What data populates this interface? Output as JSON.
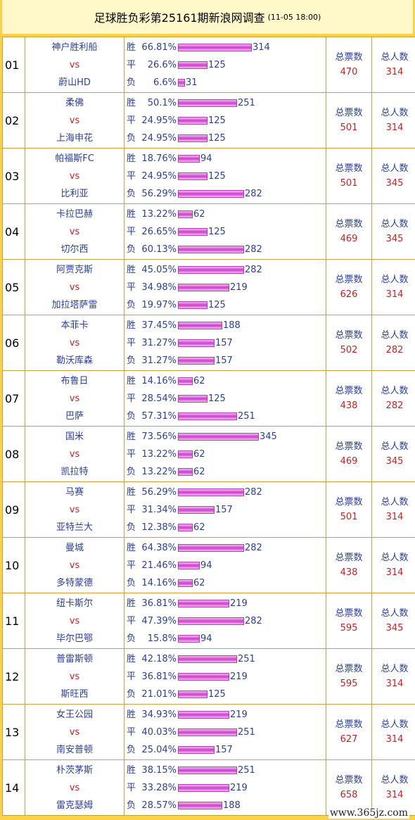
{
  "header": {
    "title": "足球胜负彩第25161期新浪网调查",
    "datetime": "(11-05 18:00)"
  },
  "labels": {
    "win": "胜",
    "draw": "平",
    "loss": "负",
    "vs": "vs",
    "total_votes": "总票数",
    "total_people": "总人数"
  },
  "bar_scale_max": 345,
  "matches": [
    {
      "num": "01",
      "home": "神户胜利船",
      "away": "蔚山HD",
      "win_pct": "66.81%",
      "win": 314,
      "draw_pct": "26.6%",
      "draw": 125,
      "loss_pct": "6.6%",
      "loss": 31,
      "total_votes": "470",
      "total_people": "314"
    },
    {
      "num": "02",
      "home": "柔佛",
      "away": "上海申花",
      "win_pct": "50.1%",
      "win": 251,
      "draw_pct": "24.95%",
      "draw": 125,
      "loss_pct": "24.95%",
      "loss": 125,
      "total_votes": "501",
      "total_people": "314"
    },
    {
      "num": "03",
      "home": "帕福斯FC",
      "away": "比利亚",
      "win_pct": "18.76%",
      "win": 94,
      "draw_pct": "24.95%",
      "draw": 125,
      "loss_pct": "56.29%",
      "loss": 282,
      "total_votes": "501",
      "total_people": "345"
    },
    {
      "num": "04",
      "home": "卡拉巴赫",
      "away": "切尔西",
      "win_pct": "13.22%",
      "win": 62,
      "draw_pct": "26.65%",
      "draw": 125,
      "loss_pct": "60.13%",
      "loss": 282,
      "total_votes": "469",
      "total_people": "345"
    },
    {
      "num": "05",
      "home": "阿贾克斯",
      "away": "加拉塔萨雷",
      "win_pct": "45.05%",
      "win": 282,
      "draw_pct": "34.98%",
      "draw": 219,
      "loss_pct": "19.97%",
      "loss": 125,
      "total_votes": "626",
      "total_people": "314"
    },
    {
      "num": "06",
      "home": "本菲卡",
      "away": "勒沃库森",
      "win_pct": "37.45%",
      "win": 188,
      "draw_pct": "31.27%",
      "draw": 157,
      "loss_pct": "31.27%",
      "loss": 157,
      "total_votes": "502",
      "total_people": "282"
    },
    {
      "num": "07",
      "home": "布鲁日",
      "away": "巴萨",
      "win_pct": "14.16%",
      "win": 62,
      "draw_pct": "28.54%",
      "draw": 125,
      "loss_pct": "57.31%",
      "loss": 251,
      "total_votes": "438",
      "total_people": "282"
    },
    {
      "num": "08",
      "home": "国米",
      "away": "凯拉特",
      "win_pct": "73.56%",
      "win": 345,
      "draw_pct": "13.22%",
      "draw": 62,
      "loss_pct": "13.22%",
      "loss": 62,
      "total_votes": "469",
      "total_people": "345"
    },
    {
      "num": "09",
      "home": "马赛",
      "away": "亚特兰大",
      "win_pct": "56.29%",
      "win": 282,
      "draw_pct": "31.34%",
      "draw": 157,
      "loss_pct": "12.38%",
      "loss": 62,
      "total_votes": "501",
      "total_people": "314"
    },
    {
      "num": "10",
      "home": "曼城",
      "away": "多特蒙德",
      "win_pct": "64.38%",
      "win": 282,
      "draw_pct": "21.46%",
      "draw": 94,
      "loss_pct": "14.16%",
      "loss": 62,
      "total_votes": "438",
      "total_people": "314"
    },
    {
      "num": "11",
      "home": "纽卡斯尔",
      "away": "毕尔巴鄂",
      "win_pct": "36.81%",
      "win": 219,
      "draw_pct": "47.39%",
      "draw": 282,
      "loss_pct": "15.8%",
      "loss": 94,
      "total_votes": "595",
      "total_people": "345"
    },
    {
      "num": "12",
      "home": "普雷斯顿",
      "away": "斯旺西",
      "win_pct": "42.18%",
      "win": 251,
      "draw_pct": "36.81%",
      "draw": 219,
      "loss_pct": "21.01%",
      "loss": 125,
      "total_votes": "595",
      "total_people": "314"
    },
    {
      "num": "13",
      "home": "女王公园",
      "away": "南安普顿",
      "win_pct": "34.93%",
      "win": 219,
      "draw_pct": "40.03%",
      "draw": 251,
      "loss_pct": "25.04%",
      "loss": 157,
      "total_votes": "627",
      "total_people": "314"
    },
    {
      "num": "14",
      "home": "朴茨茅斯",
      "away": "雷克瑟姆",
      "win_pct": "38.15%",
      "win": 251,
      "draw_pct": "33.28%",
      "draw": 219,
      "loss_pct": "28.57%",
      "loss": 188,
      "total_votes": "658",
      "total_people": "314"
    }
  ],
  "watermark": "www.365jz.com"
}
